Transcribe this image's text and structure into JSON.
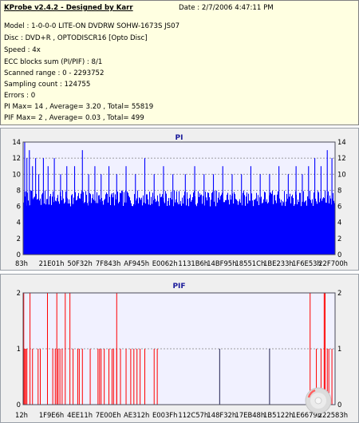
{
  "header": {
    "title": "KProbe v2.4.2 - Designed by Karr",
    "date": "Date : 2/7/2006 4:47:11 PM",
    "lines": [
      "Model : 1-0-0-0 LITE-ON DVDRW SOHW-1673S JS07",
      "Disc : DVD+R , OPTODISCR16 [Opto Disc]",
      "Speed : 4x",
      "ECC blocks sum (PI/PIF) : 8/1",
      "Scanned range : 0 - 2293752",
      "Sampling count : 124755",
      "Errors : 0",
      "PI Max= 14 , Average= 3.20 , Total= 55819",
      "PIF Max= 2 , Average= 0.03 , Total= 499"
    ]
  },
  "chart_data": [
    {
      "type": "bar",
      "title": "PI",
      "color": "#0000ff",
      "ylim": [
        0,
        14
      ],
      "yticks": [
        0,
        2,
        4,
        6,
        8,
        10,
        12,
        14
      ],
      "xticks": [
        "83h",
        "21E01h",
        "50F32h",
        "7F843h",
        "AF945h",
        "E0062h",
        "1131B6h",
        "14BF95h",
        "18551Ch",
        "1BE233h",
        "1F6E53h",
        "22F700h"
      ],
      "baseline_range": [
        6,
        8
      ],
      "peaks": [
        {
          "x": 0.005,
          "y": 14
        },
        {
          "x": 0.012,
          "y": 12
        },
        {
          "x": 0.02,
          "y": 13
        },
        {
          "x": 0.03,
          "y": 11
        },
        {
          "x": 0.04,
          "y": 12
        },
        {
          "x": 0.05,
          "y": 10
        },
        {
          "x": 0.065,
          "y": 12
        },
        {
          "x": 0.08,
          "y": 11
        },
        {
          "x": 0.1,
          "y": 12
        },
        {
          "x": 0.12,
          "y": 10
        },
        {
          "x": 0.14,
          "y": 11
        },
        {
          "x": 0.165,
          "y": 11
        },
        {
          "x": 0.19,
          "y": 13
        },
        {
          "x": 0.21,
          "y": 10
        },
        {
          "x": 0.23,
          "y": 11
        },
        {
          "x": 0.25,
          "y": 10
        },
        {
          "x": 0.275,
          "y": 11
        },
        {
          "x": 0.3,
          "y": 10
        },
        {
          "x": 0.33,
          "y": 11
        },
        {
          "x": 0.36,
          "y": 10
        },
        {
          "x": 0.39,
          "y": 12
        },
        {
          "x": 0.42,
          "y": 10
        },
        {
          "x": 0.45,
          "y": 11
        },
        {
          "x": 0.48,
          "y": 10
        },
        {
          "x": 0.52,
          "y": 10
        },
        {
          "x": 0.55,
          "y": 11
        },
        {
          "x": 0.58,
          "y": 10
        },
        {
          "x": 0.61,
          "y": 10
        },
        {
          "x": 0.64,
          "y": 11
        },
        {
          "x": 0.67,
          "y": 10
        },
        {
          "x": 0.7,
          "y": 10
        },
        {
          "x": 0.73,
          "y": 11
        },
        {
          "x": 0.76,
          "y": 10
        },
        {
          "x": 0.79,
          "y": 10
        },
        {
          "x": 0.82,
          "y": 11
        },
        {
          "x": 0.85,
          "y": 10
        },
        {
          "x": 0.875,
          "y": 11
        },
        {
          "x": 0.895,
          "y": 10
        },
        {
          "x": 0.915,
          "y": 11
        },
        {
          "x": 0.935,
          "y": 12
        },
        {
          "x": 0.955,
          "y": 11
        },
        {
          "x": 0.975,
          "y": 13
        },
        {
          "x": 0.99,
          "y": 12
        }
      ]
    },
    {
      "type": "bar",
      "title": "PIF",
      "color": "#ff0000",
      "ylim": [
        0,
        2
      ],
      "yticks": [
        0,
        1,
        2
      ],
      "xticks": [
        "12h",
        "1F9E6h",
        "4EE11h",
        "7E00Eh",
        "AE312h",
        "E003Fh",
        "112C57h",
        "148F32h",
        "17EB48h",
        "1B5122h",
        "1E6679h",
        "222583h"
      ],
      "values": [
        {
          "x": 0.002,
          "y": 2
        },
        {
          "x": 0.005,
          "y": 1
        },
        {
          "x": 0.008,
          "y": 1
        },
        {
          "x": 0.012,
          "y": 1
        },
        {
          "x": 0.022,
          "y": 2
        },
        {
          "x": 0.03,
          "y": 1
        },
        {
          "x": 0.048,
          "y": 1
        },
        {
          "x": 0.055,
          "y": 1
        },
        {
          "x": 0.078,
          "y": 2
        },
        {
          "x": 0.095,
          "y": 1
        },
        {
          "x": 0.103,
          "y": 1
        },
        {
          "x": 0.108,
          "y": 2
        },
        {
          "x": 0.112,
          "y": 1
        },
        {
          "x": 0.118,
          "y": 1
        },
        {
          "x": 0.125,
          "y": 1
        },
        {
          "x": 0.135,
          "y": 2
        },
        {
          "x": 0.15,
          "y": 2
        },
        {
          "x": 0.16,
          "y": 1
        },
        {
          "x": 0.175,
          "y": 1
        },
        {
          "x": 0.18,
          "y": 1
        },
        {
          "x": 0.19,
          "y": 1
        },
        {
          "x": 0.215,
          "y": 1
        },
        {
          "x": 0.24,
          "y": 1
        },
        {
          "x": 0.245,
          "y": 1
        },
        {
          "x": 0.25,
          "y": 1
        },
        {
          "x": 0.26,
          "y": 1
        },
        {
          "x": 0.275,
          "y": 1
        },
        {
          "x": 0.285,
          "y": 1
        },
        {
          "x": 0.29,
          "y": 1
        },
        {
          "x": 0.3,
          "y": 1
        },
        {
          "x": 0.3,
          "y": 2
        },
        {
          "x": 0.312,
          "y": 1
        },
        {
          "x": 0.33,
          "y": 1
        },
        {
          "x": 0.345,
          "y": 1
        },
        {
          "x": 0.355,
          "y": 1
        },
        {
          "x": 0.365,
          "y": 1
        },
        {
          "x": 0.375,
          "y": 1
        },
        {
          "x": 0.39,
          "y": 1
        },
        {
          "x": 0.42,
          "y": 1
        },
        {
          "x": 0.43,
          "y": 1
        },
        {
          "x": 0.63,
          "y": 1
        },
        {
          "x": 0.79,
          "y": 1
        },
        {
          "x": 0.92,
          "y": 2
        },
        {
          "x": 0.94,
          "y": 1
        },
        {
          "x": 0.955,
          "y": 1
        },
        {
          "x": 0.965,
          "y": 2
        },
        {
          "x": 0.968,
          "y": 2
        },
        {
          "x": 0.975,
          "y": 1
        },
        {
          "x": 0.98,
          "y": 1
        },
        {
          "x": 0.99,
          "y": 1
        }
      ]
    }
  ]
}
